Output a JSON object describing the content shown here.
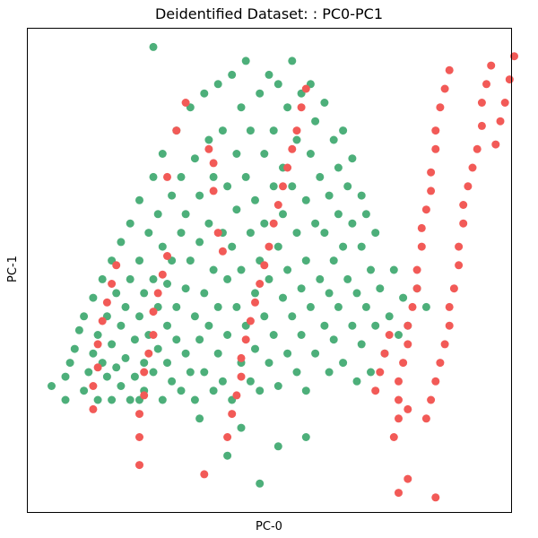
{
  "chart_data": {
    "type": "scatter",
    "title": "Deidentified Dataset: : PC0-PC1",
    "xlabel": "PC-0",
    "ylabel": "PC-1",
    "xlim": [
      0,
      100
    ],
    "ylim": [
      0,
      100
    ],
    "xticks": [],
    "yticks": [],
    "grid": false,
    "legend": "none",
    "series": [
      {
        "color": "#4daf7a",
        "values": [
          [
            3,
            25
          ],
          [
            6,
            22
          ],
          [
            6,
            27
          ],
          [
            7,
            30
          ],
          [
            8,
            33
          ],
          [
            9,
            37
          ],
          [
            10,
            40
          ],
          [
            10,
            24
          ],
          [
            11,
            28
          ],
          [
            12,
            32
          ],
          [
            12,
            44
          ],
          [
            13,
            36
          ],
          [
            13,
            22
          ],
          [
            14,
            48
          ],
          [
            14,
            30
          ],
          [
            15,
            27
          ],
          [
            15,
            40
          ],
          [
            16,
            34
          ],
          [
            16,
            52
          ],
          [
            16,
            22
          ],
          [
            17,
            45
          ],
          [
            17,
            29
          ],
          [
            18,
            38
          ],
          [
            18,
            56
          ],
          [
            18,
            25
          ],
          [
            19,
            42
          ],
          [
            19,
            31
          ],
          [
            20,
            48
          ],
          [
            20,
            60
          ],
          [
            20,
            22
          ],
          [
            21,
            35
          ],
          [
            21,
            27
          ],
          [
            22,
            52
          ],
          [
            22,
            40
          ],
          [
            22,
            65
          ],
          [
            23,
            30
          ],
          [
            23,
            45
          ],
          [
            23,
            24
          ],
          [
            24,
            58
          ],
          [
            24,
            36
          ],
          [
            25,
            70
          ],
          [
            25,
            48
          ],
          [
            25,
            28
          ],
          [
            26,
            42
          ],
          [
            26,
            62
          ],
          [
            26,
            33
          ],
          [
            27,
            22
          ],
          [
            27,
            55
          ],
          [
            27,
            75
          ],
          [
            28,
            38
          ],
          [
            28,
            47
          ],
          [
            28,
            30
          ],
          [
            29,
            66
          ],
          [
            29,
            26
          ],
          [
            29,
            52
          ],
          [
            30,
            42
          ],
          [
            30,
            80
          ],
          [
            30,
            35
          ],
          [
            31,
            58
          ],
          [
            31,
            24
          ],
          [
            31,
            70
          ],
          [
            32,
            46
          ],
          [
            32,
            32
          ],
          [
            32,
            62
          ],
          [
            33,
            28
          ],
          [
            33,
            52
          ],
          [
            33,
            85
          ],
          [
            34,
            40
          ],
          [
            34,
            74
          ],
          [
            34,
            22
          ],
          [
            35,
            56
          ],
          [
            35,
            35
          ],
          [
            35,
            66
          ],
          [
            36,
            45
          ],
          [
            36,
            88
          ],
          [
            36,
            28
          ],
          [
            37,
            60
          ],
          [
            37,
            38
          ],
          [
            37,
            78
          ],
          [
            38,
            50
          ],
          [
            38,
            24
          ],
          [
            38,
            70
          ],
          [
            39,
            42
          ],
          [
            39,
            90
          ],
          [
            39,
            32
          ],
          [
            40,
            58
          ],
          [
            40,
            80
          ],
          [
            40,
            26
          ],
          [
            41,
            48
          ],
          [
            41,
            68
          ],
          [
            41,
            36
          ],
          [
            42,
            92
          ],
          [
            42,
            55
          ],
          [
            42,
            22
          ],
          [
            43,
            75
          ],
          [
            43,
            42
          ],
          [
            43,
            63
          ],
          [
            44,
            30
          ],
          [
            44,
            85
          ],
          [
            44,
            50
          ],
          [
            45,
            70
          ],
          [
            45,
            38
          ],
          [
            45,
            95
          ],
          [
            46,
            58
          ],
          [
            46,
            26
          ],
          [
            46,
            80
          ],
          [
            47,
            45
          ],
          [
            47,
            65
          ],
          [
            47,
            33
          ],
          [
            48,
            88
          ],
          [
            48,
            52
          ],
          [
            48,
            24
          ],
          [
            49,
            75
          ],
          [
            49,
            40
          ],
          [
            49,
            60
          ],
          [
            50,
            92
          ],
          [
            50,
            30
          ],
          [
            50,
            48
          ],
          [
            51,
            68
          ],
          [
            51,
            80
          ],
          [
            51,
            36
          ],
          [
            52,
            55
          ],
          [
            52,
            25
          ],
          [
            52,
            90
          ],
          [
            53,
            44
          ],
          [
            53,
            72
          ],
          [
            53,
            62
          ],
          [
            54,
            32
          ],
          [
            54,
            85
          ],
          [
            54,
            50
          ],
          [
            55,
            40
          ],
          [
            55,
            68
          ],
          [
            55,
            95
          ],
          [
            56,
            58
          ],
          [
            56,
            28
          ],
          [
            56,
            78
          ],
          [
            57,
            46
          ],
          [
            57,
            88
          ],
          [
            57,
            36
          ],
          [
            58,
            65
          ],
          [
            58,
            52
          ],
          [
            58,
            24
          ],
          [
            59,
            75
          ],
          [
            59,
            42
          ],
          [
            59,
            90
          ],
          [
            60,
            60
          ],
          [
            60,
            32
          ],
          [
            60,
            82
          ],
          [
            61,
            48
          ],
          [
            61,
            70
          ],
          [
            62,
            38
          ],
          [
            62,
            58
          ],
          [
            62,
            86
          ],
          [
            63,
            66
          ],
          [
            63,
            28
          ],
          [
            63,
            45
          ],
          [
            64,
            78
          ],
          [
            64,
            52
          ],
          [
            64,
            35
          ],
          [
            65,
            62
          ],
          [
            65,
            42
          ],
          [
            65,
            72
          ],
          [
            66,
            30
          ],
          [
            66,
            55
          ],
          [
            66,
            80
          ],
          [
            67,
            48
          ],
          [
            67,
            68
          ],
          [
            68,
            38
          ],
          [
            68,
            60
          ],
          [
            68,
            74
          ],
          [
            69,
            45
          ],
          [
            69,
            26
          ],
          [
            70,
            55
          ],
          [
            70,
            66
          ],
          [
            70,
            34
          ],
          [
            71,
            42
          ],
          [
            71,
            62
          ],
          [
            72,
            50
          ],
          [
            72,
            28
          ],
          [
            73,
            38
          ],
          [
            73,
            58
          ],
          [
            74,
            46
          ],
          [
            75,
            32
          ],
          [
            76,
            40
          ],
          [
            77,
            50
          ],
          [
            78,
            36
          ],
          [
            79,
            44
          ],
          [
            80,
            38
          ],
          [
            82,
            46
          ],
          [
            84,
            42
          ],
          [
            25,
            98
          ],
          [
            22,
            22
          ],
          [
            35,
            18
          ],
          [
            44,
            16
          ],
          [
            52,
            12
          ],
          [
            58,
            14
          ],
          [
            41,
            10
          ],
          [
            48,
            4
          ]
        ]
      },
      {
        "color": "#f25a57",
        "values": [
          [
            12,
            20
          ],
          [
            12,
            25
          ],
          [
            13,
            29
          ],
          [
            13,
            34
          ],
          [
            14,
            39
          ],
          [
            15,
            43
          ],
          [
            16,
            47
          ],
          [
            17,
            51
          ],
          [
            22,
            14
          ],
          [
            22,
            19
          ],
          [
            23,
            23
          ],
          [
            23,
            28
          ],
          [
            24,
            32
          ],
          [
            25,
            36
          ],
          [
            25,
            41
          ],
          [
            26,
            45
          ],
          [
            27,
            49
          ],
          [
            28,
            53
          ],
          [
            28,
            70
          ],
          [
            30,
            80
          ],
          [
            32,
            86
          ],
          [
            37,
            76
          ],
          [
            38,
            67
          ],
          [
            38,
            73
          ],
          [
            39,
            58
          ],
          [
            40,
            54
          ],
          [
            41,
            14
          ],
          [
            42,
            19
          ],
          [
            43,
            23
          ],
          [
            44,
            27
          ],
          [
            44,
            31
          ],
          [
            45,
            35
          ],
          [
            46,
            39
          ],
          [
            47,
            43
          ],
          [
            48,
            47
          ],
          [
            49,
            51
          ],
          [
            50,
            55
          ],
          [
            51,
            60
          ],
          [
            52,
            64
          ],
          [
            53,
            68
          ],
          [
            54,
            72
          ],
          [
            55,
            76
          ],
          [
            56,
            80
          ],
          [
            57,
            85
          ],
          [
            58,
            89
          ],
          [
            77,
            14
          ],
          [
            78,
            18
          ],
          [
            78,
            22
          ],
          [
            78,
            26
          ],
          [
            79,
            30
          ],
          [
            80,
            34
          ],
          [
            80,
            38
          ],
          [
            81,
            42
          ],
          [
            82,
            46
          ],
          [
            82,
            50
          ],
          [
            83,
            55
          ],
          [
            83,
            59
          ],
          [
            84,
            63
          ],
          [
            85,
            67
          ],
          [
            85,
            71
          ],
          [
            86,
            76
          ],
          [
            86,
            80
          ],
          [
            87,
            85
          ],
          [
            88,
            89
          ],
          [
            89,
            93
          ],
          [
            78,
            2
          ],
          [
            80,
            5
          ],
          [
            84,
            18
          ],
          [
            85,
            22
          ],
          [
            86,
            26
          ],
          [
            87,
            30
          ],
          [
            88,
            34
          ],
          [
            89,
            38
          ],
          [
            89,
            42
          ],
          [
            90,
            46
          ],
          [
            91,
            51
          ],
          [
            91,
            55
          ],
          [
            92,
            60
          ],
          [
            92,
            64
          ],
          [
            93,
            68
          ],
          [
            94,
            72
          ],
          [
            95,
            76
          ],
          [
            96,
            81
          ],
          [
            96,
            86
          ],
          [
            97,
            90
          ],
          [
            98,
            94
          ],
          [
            99,
            77
          ],
          [
            100,
            82
          ],
          [
            101,
            86
          ],
          [
            102,
            91
          ],
          [
            103,
            96
          ],
          [
            73,
            24
          ],
          [
            74,
            28
          ],
          [
            75,
            32
          ],
          [
            76,
            36
          ],
          [
            80,
            20
          ],
          [
            22,
            8
          ],
          [
            36,
            6
          ],
          [
            86,
            1
          ]
        ]
      }
    ]
  }
}
